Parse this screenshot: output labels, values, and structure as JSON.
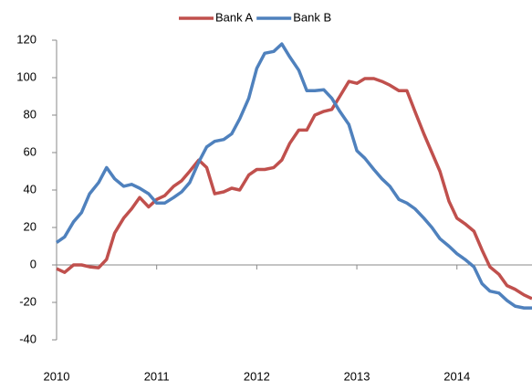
{
  "chart_data": {
    "type": "line",
    "x": [
      2010.0,
      2010.08,
      2010.17,
      2010.25,
      2010.33,
      2010.42,
      2010.5,
      2010.58,
      2010.67,
      2010.75,
      2010.83,
      2010.92,
      2011.0,
      2011.08,
      2011.17,
      2011.25,
      2011.33,
      2011.42,
      2011.5,
      2011.58,
      2011.67,
      2011.75,
      2011.83,
      2011.92,
      2012.0,
      2012.08,
      2012.17,
      2012.25,
      2012.33,
      2012.42,
      2012.5,
      2012.58,
      2012.67,
      2012.75,
      2012.83,
      2012.92,
      2013.0,
      2013.08,
      2013.17,
      2013.25,
      2013.33,
      2013.42,
      2013.5,
      2013.58,
      2013.67,
      2013.75,
      2013.83,
      2013.92,
      2014.0,
      2014.08,
      2014.17,
      2014.25,
      2014.33,
      2014.42,
      2014.5,
      2014.58,
      2014.67,
      2014.75
    ],
    "series": [
      {
        "name": "Bank A",
        "color": "#c0504d",
        "values": [
          -2,
          -4,
          0,
          0,
          -1,
          -1.5,
          3,
          17,
          25,
          30,
          36,
          31,
          35,
          37,
          42,
          45,
          50,
          56,
          52,
          38,
          39,
          41,
          40,
          48,
          51,
          51,
          52,
          56,
          65,
          72,
          72,
          80,
          82,
          83,
          90,
          98,
          97,
          99.5,
          99.5,
          98,
          96,
          93,
          93,
          82,
          70,
          60,
          50,
          34,
          25,
          22,
          18,
          8,
          -1,
          -5,
          -11,
          -13,
          -16,
          -18
        ]
      },
      {
        "name": "Bank B",
        "color": "#4f81bd",
        "values": [
          12,
          15,
          23,
          28,
          38,
          44,
          52,
          46,
          42,
          43,
          41,
          38,
          33,
          33,
          36,
          39,
          44,
          55,
          63,
          66,
          67,
          70,
          78,
          89,
          105,
          113,
          114,
          118,
          111,
          104,
          93,
          93,
          93.5,
          89,
          82,
          75,
          61,
          57,
          51,
          46,
          42,
          35,
          33,
          30,
          25,
          20,
          14,
          10,
          6,
          3,
          -1,
          -10,
          -14,
          -15,
          -19,
          -22,
          -23,
          -23
        ]
      }
    ],
    "xlim": [
      2010,
      2014.75
    ],
    "xticks": [
      2010,
      2011,
      2012,
      2013,
      2014
    ],
    "ylim": [
      -40,
      120
    ],
    "yticks": [
      -40,
      -20,
      0,
      20,
      40,
      60,
      80,
      100,
      120
    ],
    "grid": false,
    "legend": "top"
  }
}
